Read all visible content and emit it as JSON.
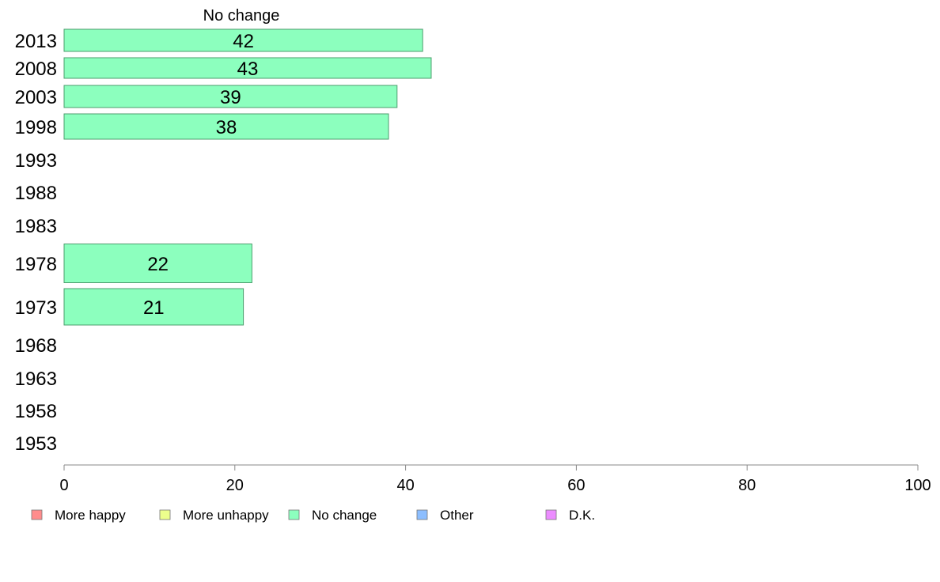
{
  "chart_data": {
    "type": "bar",
    "orientation": "horizontal",
    "series_title": "No change",
    "categories": [
      "2013",
      "2008",
      "2003",
      "1998",
      "1993",
      "1988",
      "1983",
      "1978",
      "1973",
      "1968",
      "1963",
      "1958",
      "1953"
    ],
    "series": [
      {
        "name": "No change",
        "values": [
          42,
          43,
          39,
          38,
          null,
          null,
          null,
          22,
          21,
          null,
          null,
          null,
          null
        ]
      }
    ],
    "data_labels": [
      "42",
      "43",
      "39",
      "38",
      "",
      "",
      "",
      "22",
      "21",
      "",
      "",
      "",
      ""
    ],
    "xlim": [
      0,
      100
    ],
    "xticks": [
      0,
      20,
      40,
      60,
      80,
      100
    ],
    "xtick_labels": [
      "0",
      "20",
      "40",
      "60",
      "80",
      "100"
    ],
    "grid": false,
    "legend": {
      "placement": "bottom",
      "items": [
        {
          "label": "More happy",
          "color": "#ff8c8c"
        },
        {
          "label": "More unhappy",
          "color": "#ecff8c"
        },
        {
          "label": "No change",
          "color": "#8cffbe"
        },
        {
          "label": "Other",
          "color": "#8cbeff"
        },
        {
          "label": "D.K.",
          "color": "#ec8cff"
        }
      ]
    },
    "bar_color": "#8cffbe",
    "bar_edge_color": "#4c9e6e"
  }
}
